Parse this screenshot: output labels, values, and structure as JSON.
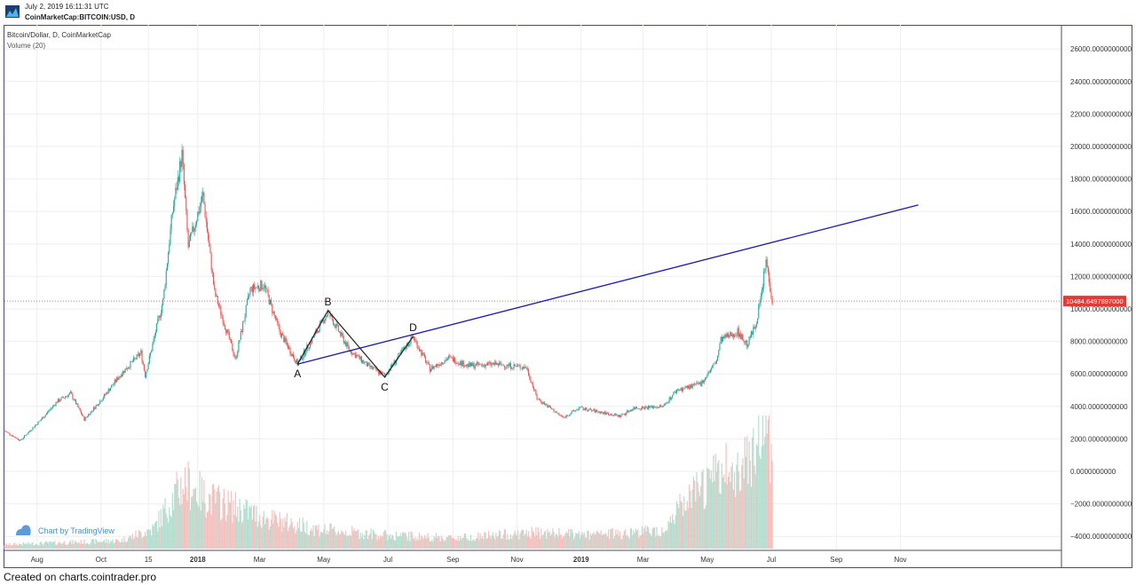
{
  "header": {
    "datetime": "July 2, 2019 16:11:31 UTC",
    "symbol": "CoinMarketCap:BITCOIN:USD, D"
  },
  "legend": {
    "main_series": "Bitcoin/Dollar, D, CoinMarketCap",
    "volume": "Volume (20)"
  },
  "watermark": "Chart by TradingView",
  "footer": "Created on charts.cointrader.pro",
  "colors": {
    "up": "#26a69a",
    "down": "#ef5350",
    "trendline": "#1a1ab8",
    "pattern": "#222222",
    "price_badge": "#e53935",
    "grid": "#eeeeee",
    "axis_text": "#333333"
  },
  "chart_data": {
    "type": "candlestick",
    "price_scale": {
      "min": -4000,
      "max": 26000,
      "ticks": [
        {
          "value": 26000,
          "label": "26000.0000000000"
        },
        {
          "value": 24000,
          "label": "24000.0000000000"
        },
        {
          "value": 22000,
          "label": "22000.0000000000"
        },
        {
          "value": 20000,
          "label": "20000.0000000000"
        },
        {
          "value": 18000,
          "label": "18000.0000000000"
        },
        {
          "value": 16000,
          "label": "16000.0000000000"
        },
        {
          "value": 14000,
          "label": "14000.0000000000"
        },
        {
          "value": 12000,
          "label": "12000.0000000000"
        },
        {
          "value": 10000,
          "label": "10000.0000000000"
        },
        {
          "value": 8000,
          "label": "8000.0000000000"
        },
        {
          "value": 6000,
          "label": "6000.0000000000"
        },
        {
          "value": 4000,
          "label": "4000.0000000000"
        },
        {
          "value": 2000,
          "label": "2000.0000000000"
        },
        {
          "value": 0,
          "label": "0.0000000000"
        },
        {
          "value": -2000,
          "label": "−2000.0000000000"
        },
        {
          "value": -4000,
          "label": "−4000.0000000000"
        }
      ]
    },
    "time_axis": {
      "labels": [
        {
          "month": "2017-08",
          "label": "Aug"
        },
        {
          "month": "2017-10",
          "label": "Oct"
        },
        {
          "month": "2017-11-15",
          "label": "15"
        },
        {
          "month": "2018-01",
          "label": "2018"
        },
        {
          "month": "2018-03",
          "label": "Mar"
        },
        {
          "month": "2018-05",
          "label": "May"
        },
        {
          "month": "2018-07",
          "label": "Jul"
        },
        {
          "month": "2018-09",
          "label": "Sep"
        },
        {
          "month": "2018-11",
          "label": "Nov"
        },
        {
          "month": "2019-01",
          "label": "2019"
        },
        {
          "month": "2019-03",
          "label": "Mar"
        },
        {
          "month": "2019-05",
          "label": "May"
        },
        {
          "month": "2019-07",
          "label": "Jul"
        },
        {
          "month": "2019-09",
          "label": "Sep"
        },
        {
          "month": "2019-11",
          "label": "Nov"
        }
      ]
    },
    "last_price": {
      "value": 10484.6497897,
      "label": "10484.6497897000"
    },
    "price_path": [
      [
        "2017-07-01",
        2500
      ],
      [
        "2017-07-16",
        1900
      ],
      [
        "2017-08-05",
        3200
      ],
      [
        "2017-08-20",
        4300
      ],
      [
        "2017-09-02",
        4800
      ],
      [
        "2017-09-15",
        3200
      ],
      [
        "2017-10-01",
        4400
      ],
      [
        "2017-10-20",
        6000
      ],
      [
        "2017-11-08",
        7300
      ],
      [
        "2017-11-12",
        5900
      ],
      [
        "2017-11-29",
        10500
      ],
      [
        "2017-12-08",
        16000
      ],
      [
        "2017-12-17",
        19500
      ],
      [
        "2017-12-23",
        13800
      ],
      [
        "2018-01-06",
        17000
      ],
      [
        "2018-01-17",
        11000
      ],
      [
        "2018-02-06",
        6900
      ],
      [
        "2018-02-20",
        11200
      ],
      [
        "2018-03-05",
        11500
      ],
      [
        "2018-03-20",
        8600
      ],
      [
        "2018-04-06",
        6600
      ],
      [
        "2018-05-05",
        9800
      ],
      [
        "2018-05-25",
        7500
      ],
      [
        "2018-06-12",
        6500
      ],
      [
        "2018-06-28",
        5900
      ],
      [
        "2018-07-25",
        8300
      ],
      [
        "2018-08-10",
        6300
      ],
      [
        "2018-08-28",
        7000
      ],
      [
        "2018-09-15",
        6500
      ],
      [
        "2018-10-10",
        6600
      ],
      [
        "2018-11-10",
        6400
      ],
      [
        "2018-11-20",
        4500
      ],
      [
        "2018-12-15",
        3300
      ],
      [
        "2018-12-30",
        3900
      ],
      [
        "2019-01-15",
        3700
      ],
      [
        "2019-02-07",
        3400
      ],
      [
        "2019-02-20",
        3900
      ],
      [
        "2019-03-20",
        4000
      ],
      [
        "2019-04-02",
        5000
      ],
      [
        "2019-04-25",
        5400
      ],
      [
        "2019-05-10",
        6800
      ],
      [
        "2019-05-14",
        8100
      ],
      [
        "2019-05-30",
        8600
      ],
      [
        "2019-06-08",
        7800
      ],
      [
        "2019-06-16",
        9000
      ],
      [
        "2019-06-22",
        11000
      ],
      [
        "2019-06-26",
        13000
      ],
      [
        "2019-07-02",
        10500
      ]
    ],
    "volume_path": [
      [
        "2017-07-01",
        0.03
      ],
      [
        "2017-10-20",
        0.06
      ],
      [
        "2017-11-20",
        0.15
      ],
      [
        "2017-12-10",
        0.4
      ],
      [
        "2017-12-20",
        0.5
      ],
      [
        "2018-01-10",
        0.38
      ],
      [
        "2018-02-10",
        0.3
      ],
      [
        "2018-03-10",
        0.22
      ],
      [
        "2018-05-01",
        0.14
      ],
      [
        "2018-07-01",
        0.1
      ],
      [
        "2018-09-01",
        0.08
      ],
      [
        "2018-11-20",
        0.12
      ],
      [
        "2019-01-10",
        0.1
      ],
      [
        "2019-03-20",
        0.14
      ],
      [
        "2019-04-05",
        0.3
      ],
      [
        "2019-05-10",
        0.55
      ],
      [
        "2019-06-01",
        0.6
      ],
      [
        "2019-06-27",
        0.95
      ],
      [
        "2019-07-02",
        0.6
      ]
    ],
    "trendline": {
      "start": [
        "2018-04-06",
        6600
      ],
      "end": [
        "2019-11-18",
        16400
      ],
      "color": "#1a1ab8"
    },
    "pattern_points": [
      {
        "label": "A",
        "date": "2018-04-06",
        "value": 6600
      },
      {
        "label": "B",
        "date": "2018-05-05",
        "value": 9900
      },
      {
        "label": "C",
        "date": "2018-06-28",
        "value": 5800
      },
      {
        "label": "D",
        "date": "2018-07-25",
        "value": 8300
      }
    ]
  }
}
